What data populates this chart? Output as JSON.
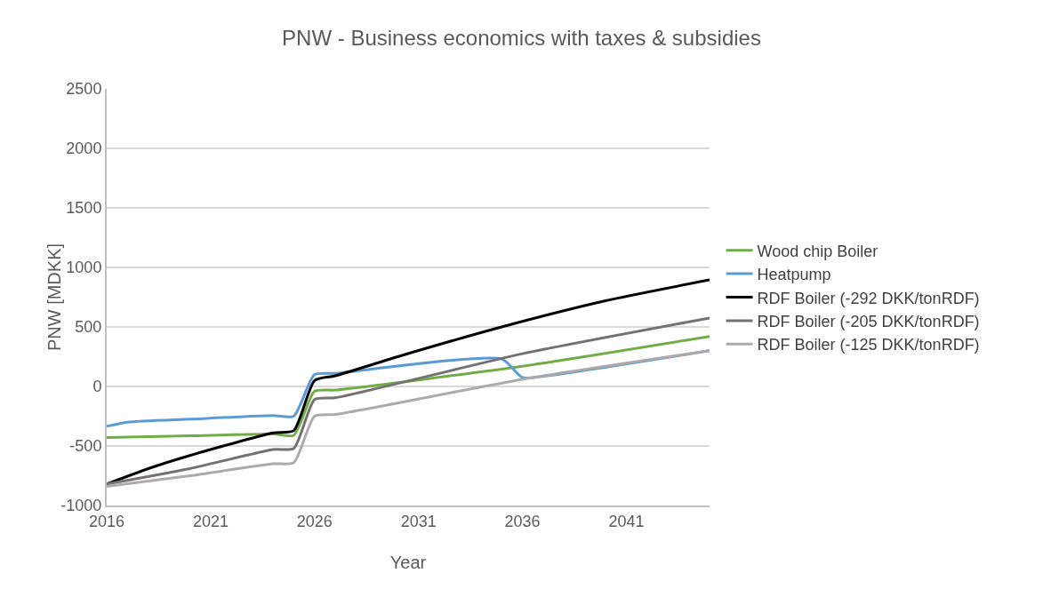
{
  "chart_data": {
    "type": "line",
    "title": "PNW - Business economics with taxes & subsidies",
    "xlabel": "Year",
    "ylabel": "PNW [MDKK]",
    "xlim": [
      2016,
      2045
    ],
    "xticks": [
      2016,
      2021,
      2026,
      2031,
      2036,
      2041
    ],
    "ylim": [
      -1000,
      2500
    ],
    "yticks": [
      -1000,
      -500,
      0,
      500,
      1000,
      1500,
      2000,
      2500
    ],
    "grid": "y",
    "legend": "right",
    "line_style": "solid",
    "series": [
      {
        "name": "Wood chip Boiler",
        "color": "#70ad47",
        "x": [
          2016,
          2020,
          2024,
          2025,
          2026,
          2027,
          2036,
          2045
        ],
        "values": [
          -430,
          -415,
          -400,
          -410,
          -40,
          -30,
          170,
          420
        ]
      },
      {
        "name": "Heatpump",
        "color": "#5b9bd5",
        "x": [
          2016,
          2017,
          2020,
          2024,
          2025,
          2026,
          2027,
          2035,
          2036,
          2037,
          2045
        ],
        "values": [
          -335,
          -300,
          -275,
          -245,
          -250,
          100,
          110,
          230,
          75,
          85,
          300
        ]
      },
      {
        "name": "RDF Boiler (-292 DKK/tonRDF)",
        "color": "#000000",
        "x": [
          2016,
          2018,
          2020,
          2024,
          2025,
          2026,
          2027,
          2030,
          2035,
          2040,
          2045
        ],
        "values": [
          -820,
          -690,
          -580,
          -390,
          -370,
          50,
          90,
          250,
          500,
          720,
          895
        ]
      },
      {
        "name": "RDF Boiler (-205 DKK/tonRDF)",
        "color": "#767171",
        "x": [
          2016,
          2020,
          2024,
          2025,
          2026,
          2027,
          2036,
          2045
        ],
        "values": [
          -820,
          -690,
          -530,
          -520,
          -110,
          -95,
          275,
          575
        ]
      },
      {
        "name": "RDF Boiler (-125 DKK/tonRDF)",
        "color": "#aeaaaa",
        "x": [
          2016,
          2020,
          2024,
          2025,
          2026,
          2027,
          2036,
          2045
        ],
        "values": [
          -840,
          -750,
          -650,
          -640,
          -250,
          -235,
          60,
          300
        ]
      }
    ]
  }
}
